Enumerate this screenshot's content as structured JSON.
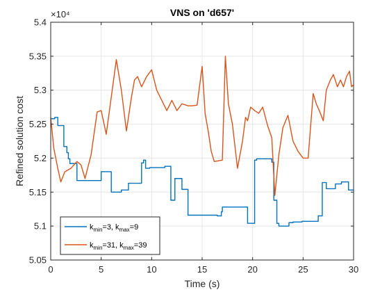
{
  "chart_data": {
    "type": "line",
    "title": "VNS on 'd657'",
    "xlabel": "Time (s)",
    "ylabel": "Refined solution cost",
    "xlim": [
      0,
      30
    ],
    "ylim": [
      51000,
      54000
    ],
    "y_exponent_label": "×10⁴",
    "xticks": [
      0,
      5,
      10,
      15,
      20,
      25,
      30
    ],
    "xtick_labels": [
      "0",
      "5",
      "10",
      "15",
      "20",
      "25",
      "30"
    ],
    "yticks": [
      50500,
      51000,
      51500,
      52000,
      52500,
      53000,
      53500,
      54000
    ],
    "ytick_labels": [
      "5.05",
      "5.1",
      "5.15",
      "5.2",
      "5.25",
      "5.3",
      "5.35",
      "5.4"
    ],
    "grid": true,
    "legend_position": "bottom-left",
    "series": [
      {
        "name_main": "k",
        "name_sub1": "min",
        "name_mid": "=3, k",
        "name_sub2": "max",
        "name_end": "=9",
        "color": "#0072BD",
        "step": true,
        "x": [
          0,
          0.4,
          0.7,
          1.0,
          1.3,
          1.6,
          1.75,
          1.9,
          2.1,
          2.3,
          2.6,
          3.0,
          3.3,
          3.6,
          4.0,
          4.5,
          4.8,
          5.0,
          5.2,
          5.5,
          5.8,
          6.0,
          6.2,
          6.6,
          7.0,
          7.3,
          7.7,
          8.0,
          8.3,
          8.6,
          8.9,
          9.0,
          9.2,
          9.4,
          9.6,
          9.8,
          10.0,
          10.2,
          10.5,
          11.0,
          11.3,
          11.5,
          11.7,
          11.9,
          12.1,
          12.3,
          12.6,
          13.0,
          13.4,
          13.6,
          14.0,
          15.0,
          15.5,
          16.0,
          16.5,
          16.6,
          16.9,
          17.0,
          17.2,
          17.5,
          18.0,
          18.5,
          19.0,
          19.3,
          19.5,
          19.8,
          20.0,
          20.2,
          20.4,
          20.6,
          20.8,
          21.0,
          21.5,
          21.9,
          22.1,
          22.4,
          22.6,
          22.9,
          23.2,
          23.6,
          24.0,
          24.3,
          24.6,
          24.9,
          25.2,
          25.5,
          26.1,
          26.5,
          26.9,
          27.2,
          27.3,
          27.5,
          27.8,
          28.2,
          28.5,
          28.8,
          29.2,
          29.5,
          30.0
        ],
        "y": [
          52580,
          52600,
          52480,
          52480,
          52170,
          52080,
          51990,
          51920,
          51920,
          51920,
          51670,
          51670,
          51670,
          51670,
          51670,
          51670,
          51670,
          51800,
          51800,
          51800,
          51800,
          51500,
          51500,
          51500,
          51530,
          51530,
          51630,
          51630,
          51630,
          51630,
          51630,
          51930,
          51970,
          51850,
          51850,
          51860,
          51860,
          51860,
          51860,
          51860,
          51880,
          51880,
          51880,
          51380,
          51380,
          51700,
          51700,
          51540,
          51540,
          51160,
          51160,
          51160,
          51160,
          51160,
          51150,
          51150,
          51210,
          51280,
          51280,
          51280,
          51280,
          51280,
          51280,
          51280,
          51040,
          51040,
          51040,
          51970,
          51990,
          51990,
          51990,
          51990,
          51990,
          51940,
          51380,
          51040,
          51000,
          51000,
          51000,
          51050,
          51060,
          51060,
          51060,
          51070,
          51070,
          51070,
          51070,
          51150,
          51640,
          51640,
          51550,
          51550,
          51550,
          51620,
          51620,
          51650,
          51650,
          51530,
          51530
        ]
      },
      {
        "name_main": "k",
        "name_sub1": "min",
        "name_mid": "=31, k",
        "name_sub2": "max",
        "name_end": "=39",
        "color": "#D95319",
        "step": false,
        "x": [
          0,
          0.3,
          0.7,
          1.0,
          1.4,
          2.0,
          2.6,
          3.0,
          3.4,
          4.0,
          4.6,
          5.0,
          5.5,
          6.0,
          6.5,
          7.0,
          7.5,
          8.0,
          8.3,
          8.6,
          9.0,
          9.5,
          10.0,
          10.5,
          11.0,
          11.5,
          12.0,
          12.5,
          13.0,
          13.6,
          14.0,
          14.5,
          15.0,
          15.3,
          15.6,
          15.9,
          16.2,
          16.6,
          17.0,
          17.3,
          17.6,
          18.0,
          18.5,
          19.0,
          19.3,
          19.5,
          19.8,
          20.2,
          20.6,
          21.0,
          21.5,
          21.9,
          22.2,
          22.6,
          23.0,
          23.5,
          24.0,
          24.5,
          25.0,
          25.5,
          26.0,
          26.3,
          26.6,
          27.0,
          27.3,
          27.7,
          28.0,
          28.4,
          28.7,
          29.0,
          29.3,
          29.6,
          29.8,
          30.0
        ],
        "y": [
          52600,
          52150,
          51850,
          51650,
          51800,
          51850,
          51950,
          51900,
          51700,
          52050,
          52680,
          52700,
          52350,
          52900,
          53450,
          53000,
          52400,
          52900,
          53150,
          53200,
          53050,
          53200,
          53300,
          53000,
          52850,
          52700,
          52850,
          52700,
          52800,
          52770,
          52770,
          52780,
          53350,
          52650,
          52400,
          52100,
          51950,
          51960,
          51970,
          53500,
          52800,
          52500,
          51850,
          52250,
          52600,
          52550,
          52750,
          52700,
          52660,
          52750,
          52470,
          52300,
          51450,
          52050,
          52450,
          52630,
          52250,
          52100,
          52000,
          52000,
          52950,
          52800,
          52700,
          52550,
          53000,
          53150,
          53230,
          53050,
          53150,
          53050,
          53200,
          53280,
          53050,
          53080
        ]
      }
    ]
  }
}
